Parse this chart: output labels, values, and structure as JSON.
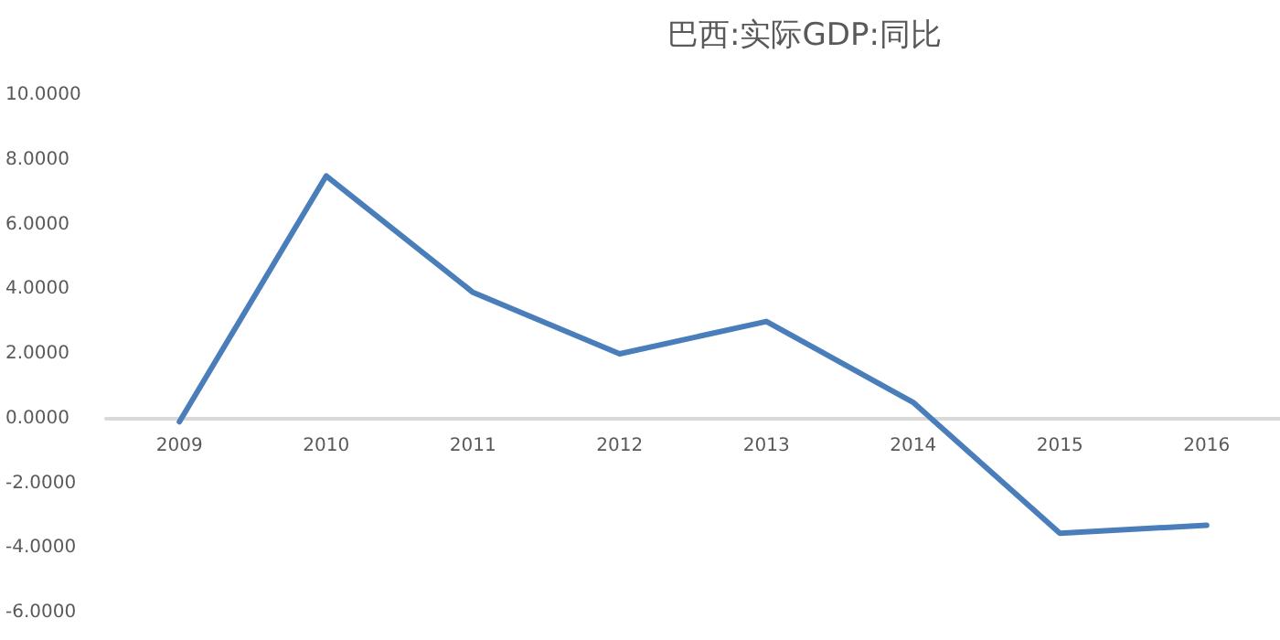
{
  "chart_data": {
    "type": "line",
    "title": "巴西:实际GDP:同比",
    "categories": [
      "2009",
      "2010",
      "2011",
      "2012",
      "2013",
      "2014",
      "2015",
      "2016"
    ],
    "series": [
      {
        "color": "#4a7ebb",
        "values": [
          -0.1,
          7.5,
          3.9,
          2.0,
          3.0,
          0.5,
          -3.55,
          -3.3
        ]
      }
    ],
    "ylim": [
      -6,
      10
    ],
    "yticks": [
      {
        "value": -6,
        "label": "-6.0000"
      },
      {
        "value": -4,
        "label": "-4.0000"
      },
      {
        "value": -2,
        "label": "-2.0000"
      },
      {
        "value": 0,
        "label": "0.0000"
      },
      {
        "value": 2,
        "label": "2.0000"
      },
      {
        "value": 4,
        "label": "4.0000"
      },
      {
        "value": 6,
        "label": "6.0000"
      },
      {
        "value": 8,
        "label": "8.0000"
      },
      {
        "value": 10,
        "label": "10.0000"
      }
    ],
    "grid": false,
    "marker": "none",
    "line_style": "solid"
  }
}
